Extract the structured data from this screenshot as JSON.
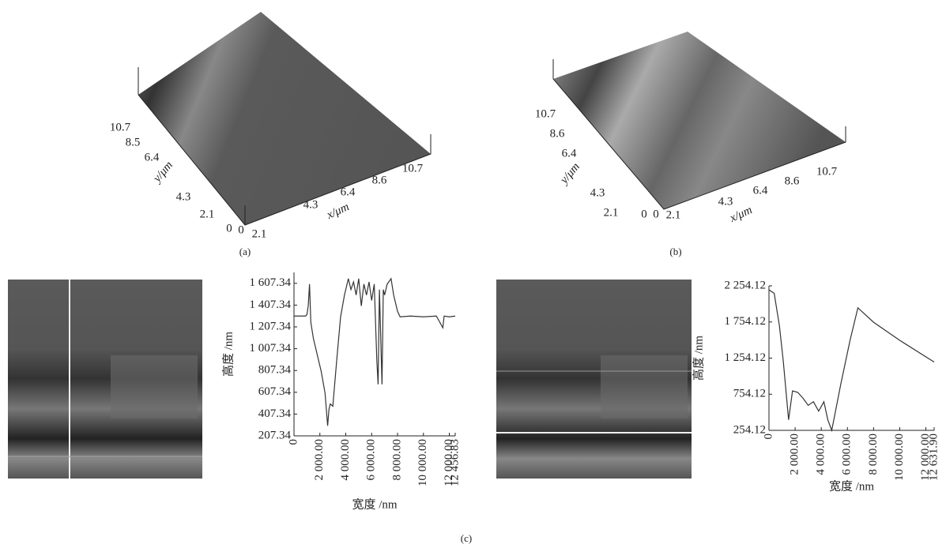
{
  "panels": [
    {
      "caption": "(a)",
      "y_label": "y/μm",
      "x_label": "x/μm",
      "y_ticks": [
        "10.7",
        "8.5",
        "6.4",
        "4.3",
        "2.1",
        "0"
      ],
      "x_ticks": [
        "0",
        "2.1",
        "4.3",
        "6.4",
        "8.6",
        "10.7"
      ]
    },
    {
      "caption": "(b)",
      "y_label": "y/μm",
      "x_label": "x/μm",
      "y_ticks": [
        "10.7",
        "8.6",
        "6.4",
        "4.3",
        "2.1",
        "0"
      ],
      "x_ticks": [
        "0",
        "2.1",
        "4.3",
        "6.4",
        "8.6",
        "10.7"
      ]
    }
  ],
  "caption": "(c)",
  "chart_data": [
    {
      "type": "line",
      "x_label": "宽度 /nm",
      "y_label": "高度 /nm",
      "color": "#333333",
      "x": [
        0,
        900,
        1000,
        1100,
        1200,
        1300,
        1500,
        1800,
        2100,
        2400,
        2600,
        2700,
        2800,
        3000,
        3300,
        3600,
        3900,
        4200,
        4400,
        4600,
        4800,
        5000,
        5200,
        5400,
        5600,
        5800,
        6000,
        6200,
        6400,
        6500,
        6600,
        6800,
        6900,
        7000,
        7200,
        7500,
        7700,
        8000,
        8200,
        9000,
        10000,
        11000,
        11500,
        11600,
        12000,
        12456.83
      ],
      "values": [
        1307,
        1307,
        1320,
        1400,
        1600,
        1250,
        1100,
        950,
        800,
        600,
        300,
        450,
        500,
        480,
        900,
        1300,
        1500,
        1650,
        1550,
        1620,
        1500,
        1650,
        1400,
        1600,
        1500,
        1620,
        1450,
        1600,
        900,
        680,
        1550,
        680,
        1550,
        1500,
        1600,
        1650,
        1500,
        1350,
        1300,
        1307,
        1300,
        1307,
        1200,
        1307,
        1300,
        1307
      ],
      "xlim": [
        0,
        12456.83
      ],
      "ylim": [
        207.34,
        1707.34
      ],
      "xticks": [
        0,
        {
          "value": 2000,
          "label": "2 000.00"
        },
        {
          "value": 4000,
          "label": "4 000.00"
        },
        {
          "value": 6000,
          "label": "6 000.00"
        },
        {
          "value": 8000,
          "label": "8 000.00"
        },
        {
          "value": 10000,
          "label": "10 000.00"
        },
        {
          "value": 12000,
          "label": "12 000.00"
        },
        {
          "value": 12456.83,
          "label": "12 456.83"
        }
      ],
      "yticks": [
        207.34,
        407.34,
        607.34,
        807.34,
        {
          "value": 1007.34,
          "label": "1 007.34"
        },
        {
          "value": 1207.34,
          "label": "1 207.34"
        },
        {
          "value": 1407.34,
          "label": "1 407.34"
        },
        {
          "value": 1607.34,
          "label": "1 607.34"
        }
      ]
    },
    {
      "type": "line",
      "x_label": "宽度 /nm",
      "y_label": "高度 /nm",
      "color": "#333333",
      "x": [
        0,
        400,
        800,
        1100,
        1300,
        1500,
        1800,
        2200,
        2600,
        3000,
        3400,
        3800,
        4200,
        4500,
        4800,
        5500,
        6200,
        6800,
        8000,
        10000,
        12631.9
      ],
      "values": [
        2200,
        2150,
        1700,
        1200,
        800,
        400,
        800,
        780,
        700,
        600,
        650,
        520,
        650,
        400,
        254.12,
        900,
        1500,
        1950,
        1750,
        1500,
        1200
      ],
      "xlim": [
        0,
        12631.9
      ],
      "ylim": [
        254.12,
        2254.12
      ],
      "xticks": [
        0,
        {
          "value": 2000,
          "label": "2 000.00"
        },
        {
          "value": 4000,
          "label": "4 000.00"
        },
        {
          "value": 6000,
          "label": "6 000.00"
        },
        {
          "value": 8000,
          "label": "8 000.00"
        },
        {
          "value": 10000,
          "label": "10 000.00"
        },
        {
          "value": 12000,
          "label": "12 000.00"
        },
        {
          "value": 12631.9,
          "label": "12 631.90"
        }
      ],
      "yticks": [
        254.12,
        754.12,
        {
          "value": 1254.12,
          "label": "1 254.12"
        },
        {
          "value": 1754.12,
          "label": "1 754.12"
        },
        {
          "value": 2254.12,
          "label": "2 254.12"
        }
      ]
    }
  ]
}
